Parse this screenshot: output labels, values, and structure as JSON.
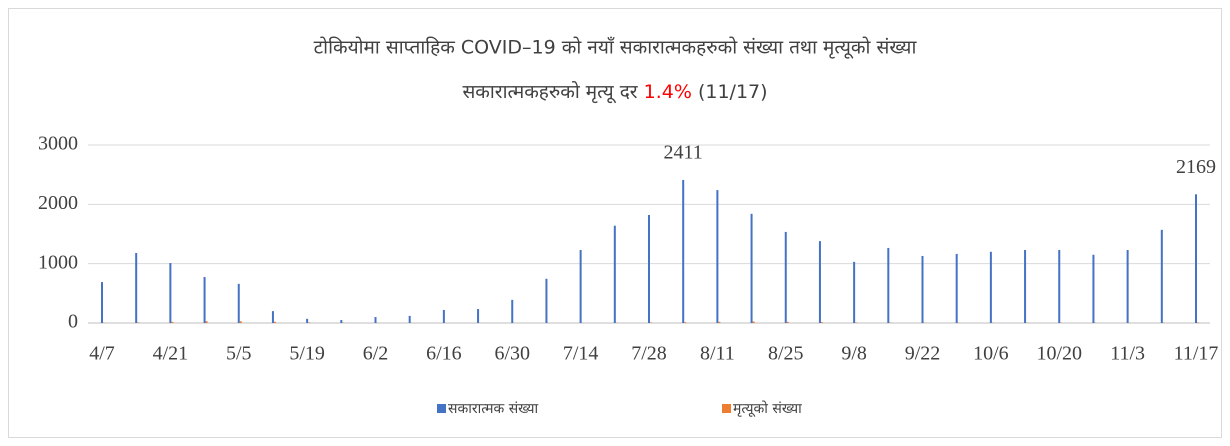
{
  "chart_data": {
    "type": "bar",
    "title": "टोकियोमा साप्ताहिक  COVID–19 को नयाँ सकारात्मकहरुको संख्या तथा मृत्यूको संख्या",
    "subtitle": [
      "सकारात्मकहरुको मृत्यू दर",
      "1.4%",
      "(11/17)"
    ],
    "subtitle_highlight_color": "#ff0000",
    "categories": [
      "4/7",
      null,
      "4/21",
      null,
      "5/5",
      null,
      "5/19",
      null,
      "6/2",
      null,
      "6/16",
      null,
      "6/30",
      null,
      "7/14",
      null,
      "7/28",
      null,
      "8/11",
      null,
      "8/25",
      null,
      "9/8",
      null,
      "9/22",
      null,
      "10/6",
      null,
      "10/20",
      null,
      "11/3",
      null,
      "11/17"
    ],
    "series": [
      {
        "name": "सकारात्मक संख्या",
        "color": "#4472c4",
        "values": [
          690,
          1180,
          1010,
          775,
          660,
          200,
          70,
          50,
          100,
          120,
          220,
          235,
          390,
          745,
          1230,
          1640,
          1820,
          2411,
          2240,
          1840,
          1535,
          1380,
          1030,
          1265,
          1130,
          1165,
          1200,
          1230,
          1230,
          1150,
          1230,
          1570,
          2169
        ],
        "value_labels": [
          null,
          null,
          null,
          null,
          null,
          null,
          null,
          null,
          null,
          null,
          null,
          null,
          null,
          null,
          null,
          null,
          null,
          "2411",
          null,
          null,
          null,
          null,
          null,
          null,
          null,
          null,
          null,
          null,
          null,
          null,
          null,
          null,
          "2169"
        ]
      },
      {
        "name": "मृत्यूको संख्या",
        "color": "#ed7d31",
        "values": [
          5,
          10,
          20,
          30,
          30,
          20,
          10,
          5,
          2,
          2,
          1,
          1,
          1,
          1,
          2,
          5,
          10,
          15,
          20,
          25,
          20,
          15,
          10,
          8,
          5,
          5,
          6,
          5,
          5,
          5,
          4,
          6,
          10
        ]
      }
    ],
    "ylim": [
      0,
      3000
    ],
    "yticks": [
      0,
      1000,
      2000,
      3000
    ],
    "grid": true,
    "legend": "bottom"
  }
}
